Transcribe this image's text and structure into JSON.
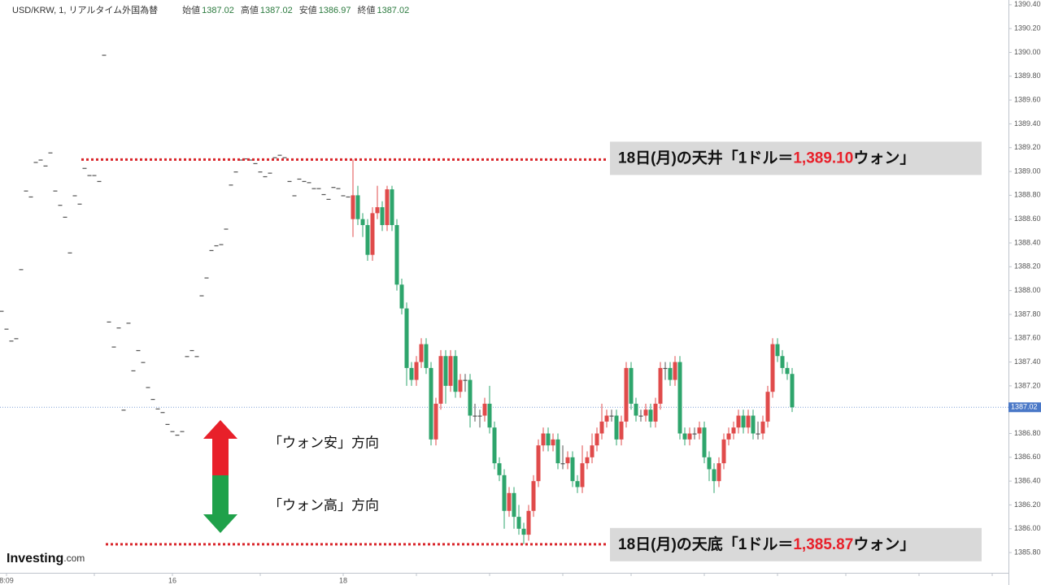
{
  "chart_data": {
    "type": "candlestick",
    "header": {
      "symbol": "USD/KRW, 1, リアルタイム外国為替",
      "items": [
        {
          "name": "始値",
          "value": "1387.02"
        },
        {
          "name": "高値",
          "value": "1387.02"
        },
        {
          "name": "安値",
          "value": "1386.97"
        },
        {
          "name": "終値",
          "value": "1387.02"
        }
      ]
    },
    "up_color": "#e04b4b",
    "down_color": "#2ea56c",
    "flat_color": "#555555",
    "open": [
      1387.83,
      1387.68,
      1387.58,
      1387.6,
      1388.18,
      1388.84,
      1388.79,
      1389.08,
      1389.1,
      1389.05,
      1389.16,
      1388.84,
      1388.72,
      1388.62,
      1388.32,
      1388.8,
      1388.73,
      1389.03,
      1388.97,
      1388.97,
      1388.92,
      1389.98,
      1387.74,
      1387.53,
      1387.69,
      1387.0,
      1387.73,
      1387.33,
      1387.5,
      1387.4,
      1387.19,
      1387.09,
      1387.01,
      1386.98,
      1386.88,
      1386.82,
      1386.79,
      1386.82,
      1387.45,
      1387.5,
      1387.45,
      1387.96,
      1388.11,
      1388.34,
      1388.38,
      1388.39,
      1388.52,
      1388.89,
      1389.0,
      1389.1,
      1389.11,
      1389.1,
      1389.07,
      1389.0,
      1388.96,
      1388.99,
      1389.12,
      1389.14,
      1389.12,
      1388.92,
      1388.8,
      1388.94,
      1388.92,
      1388.91,
      1388.86,
      1388.86,
      1388.81,
      1388.77,
      1388.87,
      1388.86,
      1388.8,
      1388.79,
      1388.6,
      1388.8,
      1388.6,
      1388.55,
      1388.3,
      1388.65,
      1388.7,
      1388.55,
      1388.85,
      1388.55,
      1388.05,
      1387.85,
      1387.35,
      1387.25,
      1387.4,
      1387.55,
      1387.35,
      1386.75,
      1387.05,
      1387.45,
      1387.2,
      1387.45,
      1387.15,
      1387.25,
      1387.25,
      1386.95,
      1386.95,
      1386.95,
      1387.05,
      1386.85,
      1386.55,
      1386.45,
      1386.15,
      1386.3,
      1386.1,
      1386.0,
      1385.95,
      1386.15,
      1386.4,
      1386.7,
      1386.8,
      1386.7,
      1386.75,
      1386.55,
      1386.55,
      1386.6,
      1386.4,
      1386.35,
      1386.55,
      1386.6,
      1386.7,
      1386.8,
      1386.9,
      1386.95,
      1386.95,
      1386.75,
      1386.9,
      1387.35,
      1387.05,
      1386.95,
      1386.95,
      1387.0,
      1386.9,
      1387.05,
      1387.35,
      1387.35,
      1387.25,
      1387.4,
      1386.8,
      1386.75,
      1386.8,
      1386.8,
      1386.85,
      1386.6,
      1386.5,
      1386.4,
      1386.55,
      1386.75,
      1386.8,
      1386.85,
      1386.95,
      1386.85,
      1386.95,
      1386.8,
      1386.8,
      1386.9,
      1387.15,
      1387.55,
      1387.45,
      1387.35,
      1387.3
    ],
    "high": [
      1387.83,
      1387.68,
      1387.58,
      1387.6,
      1388.18,
      1388.84,
      1388.79,
      1389.08,
      1389.1,
      1389.05,
      1389.16,
      1388.84,
      1388.72,
      1388.62,
      1388.32,
      1388.8,
      1388.73,
      1389.03,
      1388.97,
      1388.97,
      1388.92,
      1389.98,
      1387.74,
      1387.53,
      1387.69,
      1387.0,
      1387.73,
      1387.33,
      1387.5,
      1387.4,
      1387.19,
      1387.09,
      1387.01,
      1386.98,
      1386.88,
      1386.82,
      1386.79,
      1386.82,
      1387.45,
      1387.5,
      1387.45,
      1387.96,
      1388.11,
      1388.34,
      1388.38,
      1388.39,
      1388.52,
      1388.89,
      1389.0,
      1389.1,
      1389.11,
      1389.1,
      1389.07,
      1389.0,
      1388.96,
      1388.99,
      1389.12,
      1389.14,
      1389.12,
      1388.92,
      1388.8,
      1388.94,
      1388.92,
      1388.91,
      1388.86,
      1388.86,
      1388.81,
      1388.77,
      1388.87,
      1388.86,
      1388.8,
      1388.79,
      1389.1,
      1388.88,
      1388.65,
      1388.6,
      1388.7,
      1388.88,
      1388.75,
      1388.88,
      1388.88,
      1388.6,
      1388.1,
      1387.9,
      1387.4,
      1387.45,
      1387.6,
      1387.6,
      1387.4,
      1387.1,
      1387.5,
      1387.5,
      1387.5,
      1387.5,
      1387.3,
      1387.3,
      1387.3,
      1387.05,
      1387.0,
      1387.1,
      1387.2,
      1386.9,
      1386.6,
      1386.5,
      1386.35,
      1386.35,
      1386.2,
      1386.05,
      1386.2,
      1386.45,
      1386.75,
      1386.85,
      1386.85,
      1386.8,
      1386.8,
      1386.7,
      1386.65,
      1386.65,
      1386.45,
      1386.7,
      1386.65,
      1386.8,
      1386.85,
      1387.05,
      1387.0,
      1387.0,
      1387.0,
      1386.95,
      1387.4,
      1387.4,
      1387.1,
      1387.0,
      1387.05,
      1387.05,
      1387.1,
      1387.4,
      1387.4,
      1387.4,
      1387.45,
      1387.45,
      1386.85,
      1386.85,
      1386.85,
      1386.9,
      1386.9,
      1386.65,
      1386.55,
      1386.6,
      1386.8,
      1386.85,
      1386.9,
      1387.0,
      1387.0,
      1387.0,
      1387.0,
      1386.9,
      1386.95,
      1387.2,
      1387.6,
      1387.6,
      1387.5,
      1387.4,
      1387.35
    ],
    "low": [
      1387.83,
      1387.68,
      1387.58,
      1387.6,
      1388.18,
      1388.84,
      1388.79,
      1389.08,
      1389.1,
      1389.05,
      1389.16,
      1388.84,
      1388.72,
      1388.62,
      1388.32,
      1388.8,
      1388.73,
      1389.03,
      1388.97,
      1388.97,
      1388.92,
      1389.98,
      1387.74,
      1387.53,
      1387.69,
      1387.0,
      1387.73,
      1387.33,
      1387.5,
      1387.4,
      1387.19,
      1387.09,
      1387.01,
      1386.98,
      1386.88,
      1386.82,
      1386.79,
      1386.82,
      1387.45,
      1387.5,
      1387.45,
      1387.96,
      1388.11,
      1388.34,
      1388.38,
      1388.39,
      1388.52,
      1388.89,
      1389.0,
      1389.1,
      1389.11,
      1389.1,
      1389.07,
      1389.0,
      1388.96,
      1388.99,
      1389.12,
      1389.14,
      1389.12,
      1388.92,
      1388.8,
      1388.94,
      1388.92,
      1388.91,
      1388.86,
      1388.86,
      1388.81,
      1388.77,
      1388.87,
      1388.86,
      1388.8,
      1388.79,
      1388.45,
      1388.55,
      1388.45,
      1388.25,
      1388.25,
      1388.6,
      1388.5,
      1388.5,
      1388.5,
      1388.0,
      1387.8,
      1387.2,
      1387.2,
      1387.2,
      1387.35,
      1387.3,
      1386.7,
      1386.7,
      1387.0,
      1387.05,
      1387.15,
      1387.1,
      1387.1,
      1387.15,
      1386.85,
      1386.9,
      1386.85,
      1386.9,
      1386.8,
      1386.5,
      1386.4,
      1386.0,
      1386.1,
      1386.0,
      1385.95,
      1385.87,
      1385.9,
      1386.1,
      1386.35,
      1386.65,
      1386.65,
      1386.65,
      1386.5,
      1386.5,
      1386.5,
      1386.35,
      1386.3,
      1386.3,
      1386.5,
      1386.55,
      1386.65,
      1386.75,
      1386.85,
      1386.9,
      1386.7,
      1386.7,
      1386.85,
      1387.0,
      1386.9,
      1386.9,
      1386.9,
      1386.85,
      1386.85,
      1387.0,
      1387.25,
      1387.2,
      1387.2,
      1386.75,
      1386.7,
      1386.7,
      1386.75,
      1386.75,
      1386.55,
      1386.4,
      1386.3,
      1386.35,
      1386.5,
      1386.7,
      1386.75,
      1386.8,
      1386.8,
      1386.8,
      1386.75,
      1386.75,
      1386.75,
      1386.85,
      1387.1,
      1387.4,
      1387.3,
      1387.25,
      1386.98
    ],
    "close": [
      1387.83,
      1387.68,
      1387.58,
      1387.6,
      1388.18,
      1388.84,
      1388.79,
      1389.08,
      1389.1,
      1389.05,
      1389.16,
      1388.84,
      1388.72,
      1388.62,
      1388.32,
      1388.8,
      1388.73,
      1389.03,
      1388.97,
      1388.97,
      1388.92,
      1389.98,
      1387.74,
      1387.53,
      1387.69,
      1387.0,
      1387.73,
      1387.33,
      1387.5,
      1387.4,
      1387.19,
      1387.09,
      1387.01,
      1386.98,
      1386.88,
      1386.82,
      1386.79,
      1386.82,
      1387.45,
      1387.5,
      1387.45,
      1387.96,
      1388.11,
      1388.34,
      1388.38,
      1388.39,
      1388.52,
      1388.89,
      1389.0,
      1389.1,
      1389.11,
      1389.1,
      1389.07,
      1389.0,
      1388.96,
      1388.99,
      1389.12,
      1389.14,
      1389.12,
      1388.92,
      1388.8,
      1388.94,
      1388.92,
      1388.91,
      1388.86,
      1388.86,
      1388.81,
      1388.77,
      1388.87,
      1388.86,
      1388.8,
      1388.79,
      1388.8,
      1388.6,
      1388.55,
      1388.3,
      1388.65,
      1388.7,
      1388.55,
      1388.85,
      1388.55,
      1388.05,
      1387.85,
      1387.35,
      1387.25,
      1387.4,
      1387.55,
      1387.35,
      1386.75,
      1387.05,
      1387.45,
      1387.2,
      1387.45,
      1387.15,
      1387.25,
      1387.25,
      1386.95,
      1386.95,
      1386.95,
      1387.05,
      1386.85,
      1386.55,
      1386.45,
      1386.15,
      1386.3,
      1386.1,
      1386.0,
      1385.95,
      1386.15,
      1386.4,
      1386.7,
      1386.8,
      1386.7,
      1386.75,
      1386.55,
      1386.55,
      1386.6,
      1386.4,
      1386.35,
      1386.55,
      1386.6,
      1386.7,
      1386.8,
      1386.9,
      1386.95,
      1386.95,
      1386.75,
      1386.9,
      1387.35,
      1387.05,
      1386.95,
      1386.95,
      1387.0,
      1386.9,
      1387.05,
      1387.35,
      1387.35,
      1387.25,
      1387.4,
      1386.8,
      1386.75,
      1386.8,
      1386.8,
      1386.85,
      1386.6,
      1386.5,
      1386.4,
      1386.55,
      1386.75,
      1386.8,
      1386.85,
      1386.95,
      1386.85,
      1386.95,
      1386.8,
      1386.8,
      1386.9,
      1387.15,
      1387.55,
      1387.45,
      1387.35,
      1387.3,
      1387.02
    ],
    "xlim": [
      -0.33,
      206.33
    ],
    "xticks": [
      {
        "value": 1,
        "label": "8:09"
      },
      {
        "value": 35,
        "label": "16"
      },
      {
        "value": 70,
        "label": "18"
      }
    ],
    "xminorticks": [
      19,
      53,
      85,
      100,
      115,
      129,
      144,
      159,
      173,
      188,
      203
    ],
    "ylim": [
      1385.63,
      1390.44
    ],
    "yticks": [
      {
        "value": 1385.8,
        "label": "1385.80"
      },
      {
        "value": 1386.0,
        "label": "1386.00"
      },
      {
        "value": 1386.2,
        "label": "1386.20"
      },
      {
        "value": 1386.4,
        "label": "1386.40"
      },
      {
        "value": 1386.6,
        "label": "1386.60"
      },
      {
        "value": 1386.8,
        "label": "1386.80"
      },
      {
        "value": 1387.0,
        "label": "1387.00"
      },
      {
        "value": 1387.2,
        "label": "1387.20"
      },
      {
        "value": 1387.4,
        "label": "1387.40"
      },
      {
        "value": 1387.6,
        "label": "1387.60"
      },
      {
        "value": 1387.8,
        "label": "1387.80"
      },
      {
        "value": 1388.0,
        "label": "1388.00"
      },
      {
        "value": 1388.2,
        "label": "1388.20"
      },
      {
        "value": 1388.4,
        "label": "1388.40"
      },
      {
        "value": 1388.6,
        "label": "1388.60"
      },
      {
        "value": 1388.8,
        "label": "1388.80"
      },
      {
        "value": 1389.0,
        "label": "1389.00"
      },
      {
        "value": 1389.2,
        "label": "1389.20"
      },
      {
        "value": 1389.4,
        "label": "1389.40"
      },
      {
        "value": 1389.6,
        "label": "1389.60"
      },
      {
        "value": 1389.8,
        "label": "1389.80"
      },
      {
        "value": 1390.0,
        "label": "1390.00"
      },
      {
        "value": 1390.2,
        "label": "1390.20"
      },
      {
        "value": 1390.4,
        "label": "1390.40"
      }
    ],
    "last_price": {
      "value": 1387.02,
      "label": "1387.02"
    },
    "levels": [
      {
        "prefix": "18日(月)の天井「1ドル＝",
        "value": 1389.1,
        "label": "1,389.10",
        "suffix": "ウォン」"
      },
      {
        "prefix": "18日(月)の天底「1ドル＝",
        "value": 1385.87,
        "label": "1,385.87",
        "suffix": "ウォン」"
      }
    ],
    "arrow_labels": {
      "up": "「ウォン安」方向",
      "down": "「ウォン高」方向"
    },
    "logo": {
      "main": "Investing",
      "suffix": ".com"
    }
  }
}
